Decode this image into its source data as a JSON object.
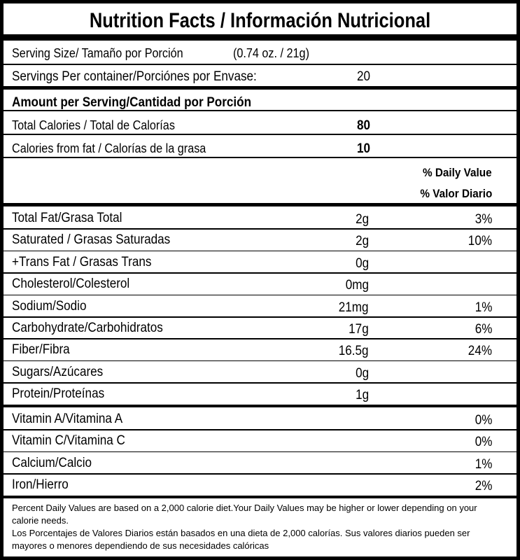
{
  "title": "Nutrition Facts / Información Nutricional",
  "serving_size": {
    "label": "Serving Size/ Tamaño por Porción",
    "value": "(0.74 oz. / 21g)"
  },
  "servings": {
    "label": "Servings Per container/Porciónes por Envase:",
    "value": 20
  },
  "amount_header": "Amount per Serving/Cantidad por Porción",
  "calories": [
    {
      "label": "Total Calories / Total de Calorías",
      "value": 80
    },
    {
      "label": "Calories from fat / Calorías de la grasa",
      "value": 10
    }
  ],
  "dv_header": [
    "% Daily Value",
    "% Valor Diario"
  ],
  "nutrients": [
    {
      "name": "Total Fat/Grasa Total",
      "amount": "2g",
      "dv": "3%"
    },
    {
      "name": "Saturated / Grasas Saturadas",
      "amount": "2g",
      "dv": "10%"
    },
    {
      "name": "+Trans Fat / Grasas Trans",
      "amount": "0g",
      "dv": null
    },
    {
      "name": "Cholesterol/Colesterol",
      "amount": "0mg",
      "dv": null
    },
    {
      "name": "Sodium/Sodio",
      "amount": "21mg",
      "dv": "1%"
    },
    {
      "name": "Carbohydrate/Carbohidratos",
      "amount": "17g",
      "dv": "6%"
    },
    {
      "name": "Fiber/Fibra",
      "amount": "16.5g",
      "dv": "24%"
    },
    {
      "name": "Sugars/Azúcares",
      "amount": "0g",
      "dv": null
    },
    {
      "name": "Protein/Proteínas",
      "amount": "1g",
      "dv": null
    }
  ],
  "vitamins": [
    {
      "name": "Vitamin A/Vitamina A",
      "dv": "0%"
    },
    {
      "name": "Vitamin C/Vitamina C",
      "dv": "0%"
    },
    {
      "name": "Calcium/Calcio",
      "dv": "1%"
    },
    {
      "name": "Iron/Hierro",
      "dv": "2%"
    }
  ],
  "footnote": [
    "Percent Daily Values are based on a 2,000 calorie diet.Your Daily Values may be higher or lower depending on your calorie needs.",
    "Los Porcentajes de Valores Diarios están basados en una dieta de 2,000 calorías. Sus valores diarios pueden ser mayores o menores dependiendo de sus necesidades calóricas"
  ]
}
